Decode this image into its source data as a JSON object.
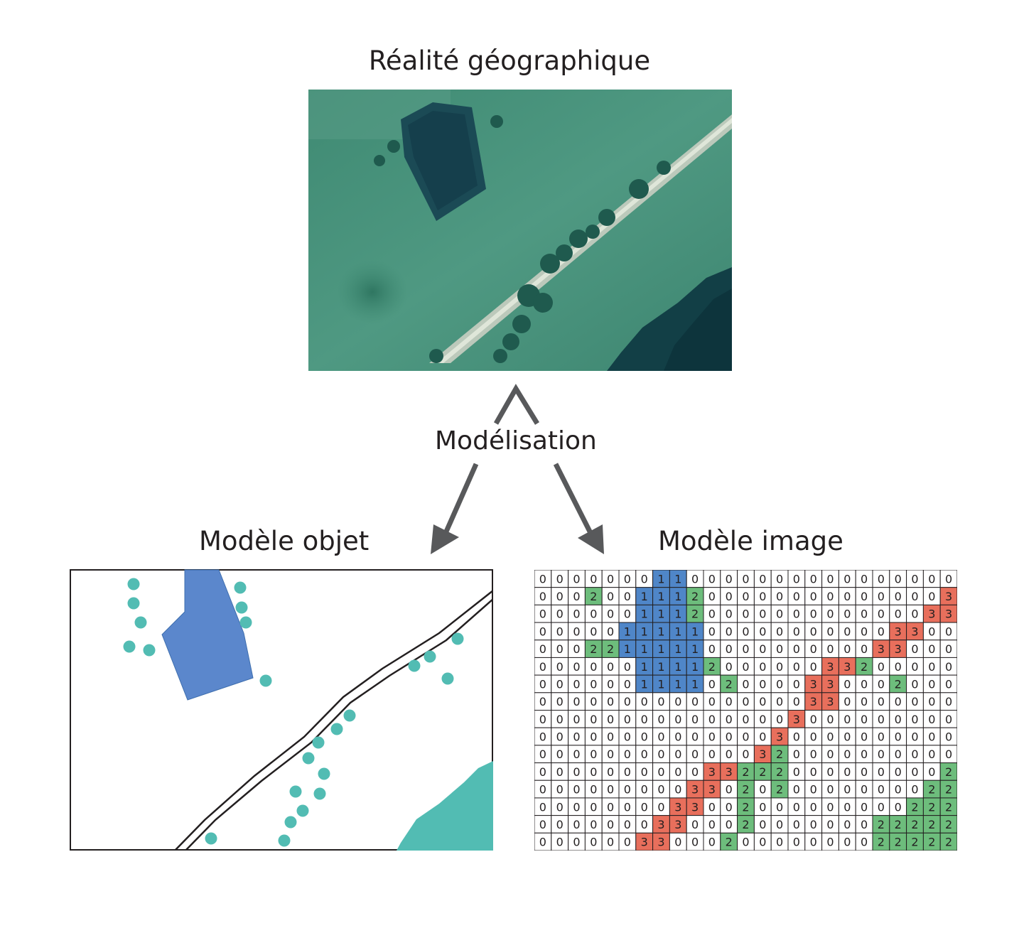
{
  "titles": {
    "reality": "Réalité géographique",
    "modeling": "Modélisation",
    "object_model": "Modèle objet",
    "image_model": "Modèle image"
  },
  "colors": {
    "water": "#5b87cc",
    "tree": "#52bcb3",
    "code_1": "#4f86c8",
    "code_2": "#6dbd7c",
    "code_3": "#e86f5c",
    "text": "#231f20"
  },
  "raster": {
    "rows": [
      "0000000110000000000000000",
      "0002001112000000000000003",
      "0000001112000000000000033",
      "0000011111000000000003300",
      "0002211111000000000033000",
      "0000001111200000033200000",
      "0000001111020000330002000",
      "0000000000000000330000000",
      "0000000000000003000000000",
      "0000000000000030000000000",
      "0000000000000320000000000",
      "0000000000332220000000002",
      "0000000003302020000000022",
      "0000000033002000000000222",
      "0000000330002000000022222",
      "0000003300020000000022222"
    ]
  }
}
